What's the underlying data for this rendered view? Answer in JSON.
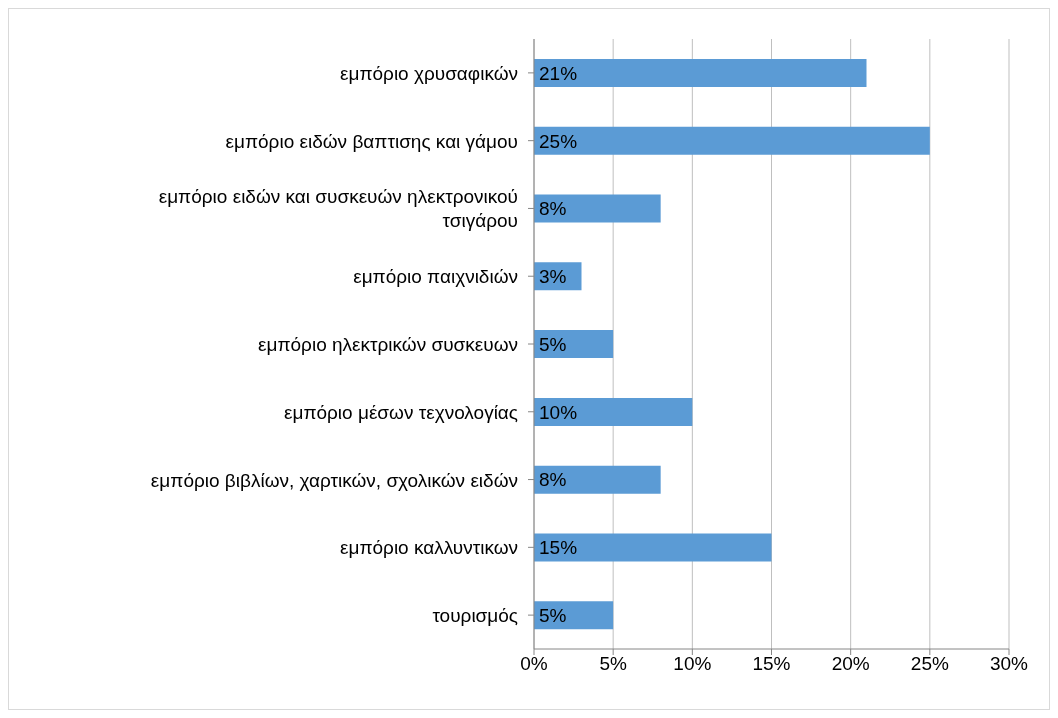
{
  "chart_data": {
    "type": "bar",
    "orientation": "horizontal",
    "categories": [
      "εμπόριο χρυσαφικών",
      "εμπόριο ειδών βαπτισης και γάμου",
      "εμπόριο ειδών και συσκευών ηλεκτρονικού τσιγάρου",
      "εμπόριο παιχνιδιών",
      "εμπόριο ηλεκτρικών συσκευων",
      "εμπόριο μέσων τεχνολογίας",
      "εμπόριο βιβλίων, χαρτικών, σχολικών ειδών",
      "εμπόριο καλλυντικων",
      "τουρισμός"
    ],
    "values": [
      21,
      25,
      8,
      3,
      5,
      10,
      8,
      15,
      5
    ],
    "value_labels": [
      "21%",
      "25%",
      "8%",
      "3%",
      "5%",
      "10%",
      "8%",
      "15%",
      "5%"
    ],
    "color": "#5b9bd5",
    "xlim": [
      0,
      30
    ],
    "xticks": [
      {
        "value": 0,
        "label": "0%"
      },
      {
        "value": 5,
        "label": "5%"
      },
      {
        "value": 10,
        "label": "10%"
      },
      {
        "value": 15,
        "label": "15%"
      },
      {
        "value": 20,
        "label": "20%"
      },
      {
        "value": 25,
        "label": "25%"
      },
      {
        "value": 30,
        "label": "30%"
      }
    ],
    "grid": "x",
    "legend": false
  }
}
